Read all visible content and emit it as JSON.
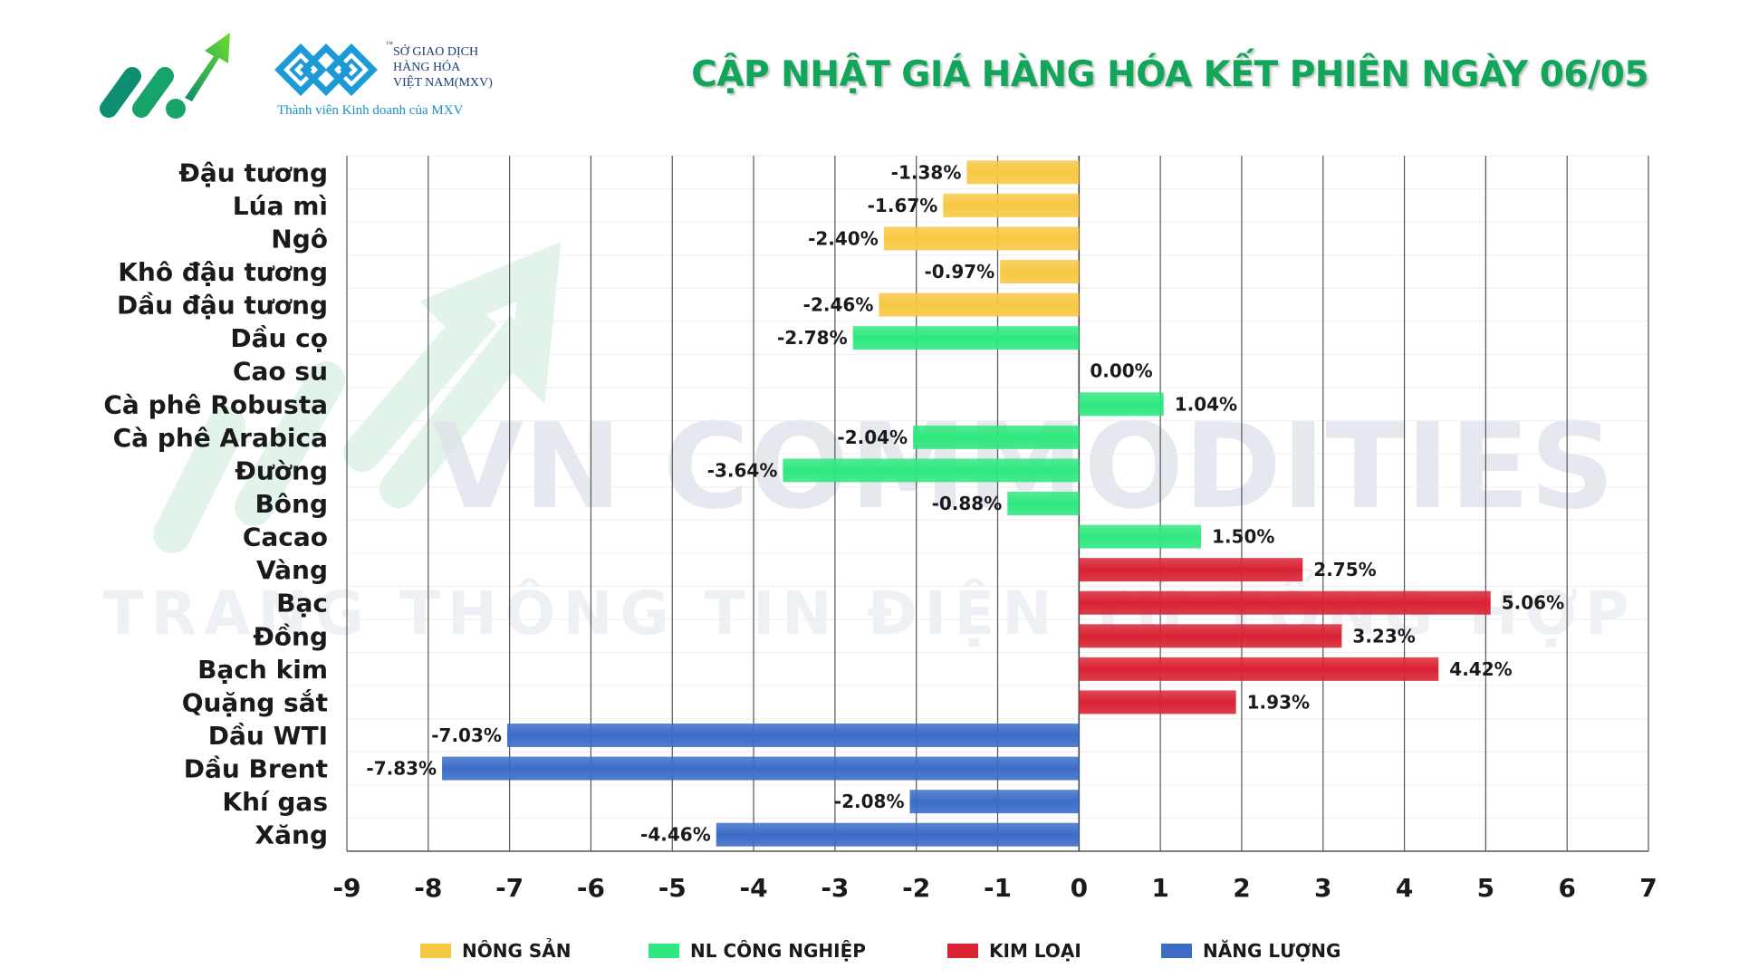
{
  "header": {
    "title": "CẬP NHẬT GIÁ HÀNG HÓA KẾT PHIÊN NGÀY 06/05",
    "mxv_lines": [
      "SỞ GIAO DỊCH",
      "HÀNG HÓA",
      "VIỆT NAM(MXV)"
    ],
    "mxv_tm": "™",
    "mxv_sub": "Thành viên Kinh doanh của MXV",
    "logo_icon": "green-arrow-logo-icon",
    "mxv_icon": "mxv-lattice-logo-icon"
  },
  "watermark": {
    "line1": "VN COMMODITIES",
    "line2": "TRANG THÔNG TIN ĐIỆN TỬ TỔNG HỢP"
  },
  "colors": {
    "nong_san": "#f7c843",
    "nl_cong_nghiep": "#2ee87f",
    "kim_loai": "#d92233",
    "nang_luong": "#3b6cc8",
    "title": "#12a65b"
  },
  "chart_data": {
    "type": "bar",
    "orientation": "horizontal",
    "title": "CẬP NHẬT GIÁ HÀNG HÓA KẾT PHIÊN NGÀY 06/05",
    "xlim": [
      -9,
      7
    ],
    "xticks": [
      -9,
      -8,
      -7,
      -6,
      -5,
      -4,
      -3,
      -2,
      -1,
      0,
      1,
      2,
      3,
      4,
      5,
      6,
      7
    ],
    "grid": "vertical",
    "legend_position": "bottom",
    "groups": [
      {
        "key": "nong_san",
        "name": "NÔNG SẢN"
      },
      {
        "key": "nl_cong_nghiep",
        "name": "NL CÔNG NGHIỆP"
      },
      {
        "key": "kim_loai",
        "name": "KIM LOẠI"
      },
      {
        "key": "nang_luong",
        "name": "NĂNG LƯỢNG"
      }
    ],
    "categories": [
      "Đậu tương",
      "Lúa mì",
      "Ngô",
      "Khô đậu tương",
      "Dầu đậu tương",
      "Dầu cọ",
      "Cao su",
      "Cà phê Robusta",
      "Cà phê Arabica",
      "Đường",
      "Bông",
      "Cacao",
      "Vàng",
      "Bạc",
      "Đồng",
      "Bạch kim",
      "Quặng sắt",
      "Dầu WTI",
      "Dầu Brent",
      "Khí gas",
      "Xăng"
    ],
    "values": [
      -1.38,
      -1.67,
      -2.4,
      -0.97,
      -2.46,
      -2.78,
      0.0,
      1.04,
      -2.04,
      -3.64,
      -0.88,
      1.5,
      2.75,
      5.06,
      3.23,
      4.42,
      1.93,
      -7.03,
      -7.83,
      -2.08,
      -4.46
    ],
    "value_labels": [
      "-1.38%",
      "-1.67%",
      "-2.40%",
      "-0.97%",
      "-2.46%",
      "-2.78%",
      "0.00%",
      "1.04%",
      "-2.04%",
      "-3.64%",
      "-0.88%",
      "1.50%",
      "2.75%",
      "5.06%",
      "3.23%",
      "4.42%",
      "1.93%",
      "-7.03%",
      "-7.83%",
      "-2.08%",
      "-4.46%"
    ],
    "group_of": [
      "nong_san",
      "nong_san",
      "nong_san",
      "nong_san",
      "nong_san",
      "nl_cong_nghiep",
      "nl_cong_nghiep",
      "nl_cong_nghiep",
      "nl_cong_nghiep",
      "nl_cong_nghiep",
      "nl_cong_nghiep",
      "nl_cong_nghiep",
      "kim_loai",
      "kim_loai",
      "kim_loai",
      "kim_loai",
      "kim_loai",
      "nang_luong",
      "nang_luong",
      "nang_luong",
      "nang_luong"
    ]
  }
}
